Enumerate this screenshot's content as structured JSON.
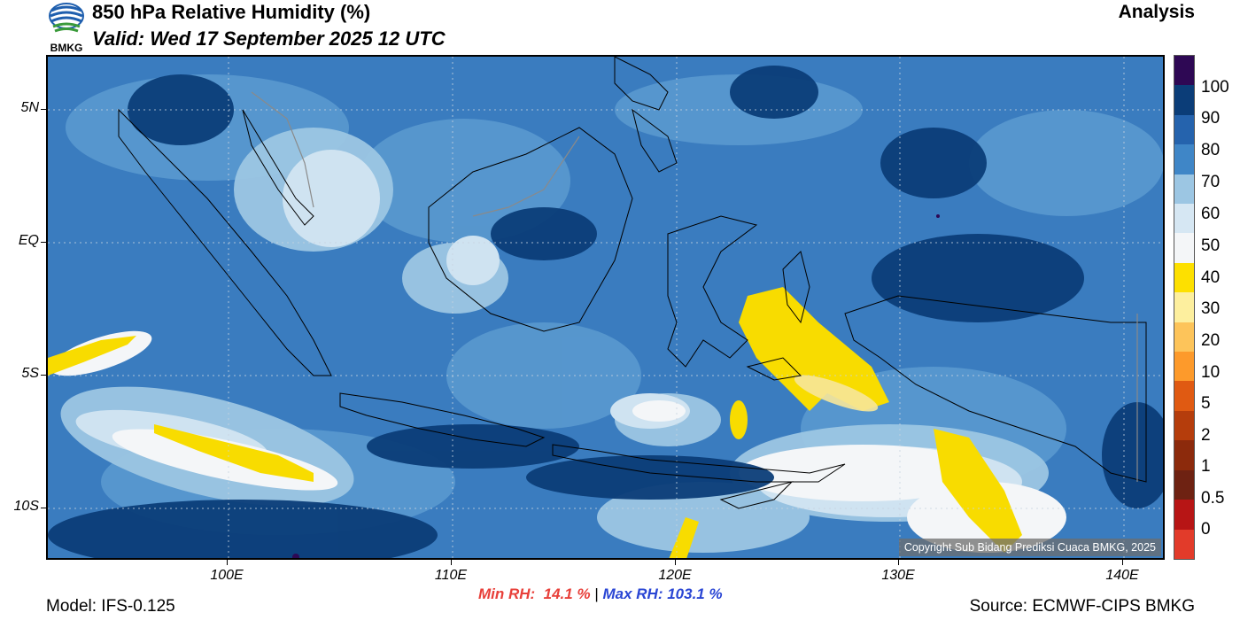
{
  "header": {
    "logo_text": "BMKG",
    "title": "850 hPa Relative Humidity (%)",
    "valid": "Valid: Wed 17 September 2025 12 UTC",
    "analysis": "Analysis"
  },
  "map": {
    "copyright": "Copyright Sub Bidang Prediksi Cuaca BMKG, 2025",
    "lat_labels": [
      "5N",
      "EQ",
      "5S",
      "10S"
    ],
    "lon_labels": [
      "100E",
      "110E",
      "120E",
      "130E",
      "140E"
    ],
    "colors": {
      "ocean_base": "#3a7cbf",
      "mid_blue": "#5a99cf",
      "light_blue": "#9cc6e3",
      "pale_blue": "#cfe3f1",
      "white": "#f4f6f8",
      "dark_blue": "#0b3d78",
      "yellow": "#f8dc00",
      "pale_yellow": "#f7e79a",
      "coastline": "#000000",
      "border": "#8a8a8a"
    }
  },
  "colorbar": {
    "labels": [
      "100",
      "90",
      "80",
      "70",
      "60",
      "50",
      "40",
      "30",
      "20",
      "10",
      "5",
      "2",
      "1",
      "0.5",
      "0"
    ],
    "colors": [
      "#2e0854",
      "#0b3d78",
      "#2563ad",
      "#3f86c7",
      "#9cc6e3",
      "#d6e7f3",
      "#f4f6f8",
      "#fde000",
      "#fdef9e",
      "#fdc45a",
      "#fd9a2b",
      "#e05a12",
      "#b53d0c",
      "#8c2a0c",
      "#6e2212",
      "#b71515",
      "#e23b2a"
    ]
  },
  "stats": {
    "min": "Min RH:  14.1 %",
    "separator": " | ",
    "max": "Max RH: 103.1 %"
  },
  "footer": {
    "model": "Model: IFS-0.125",
    "source": "Source: ECMWF-CIPS BMKG"
  }
}
